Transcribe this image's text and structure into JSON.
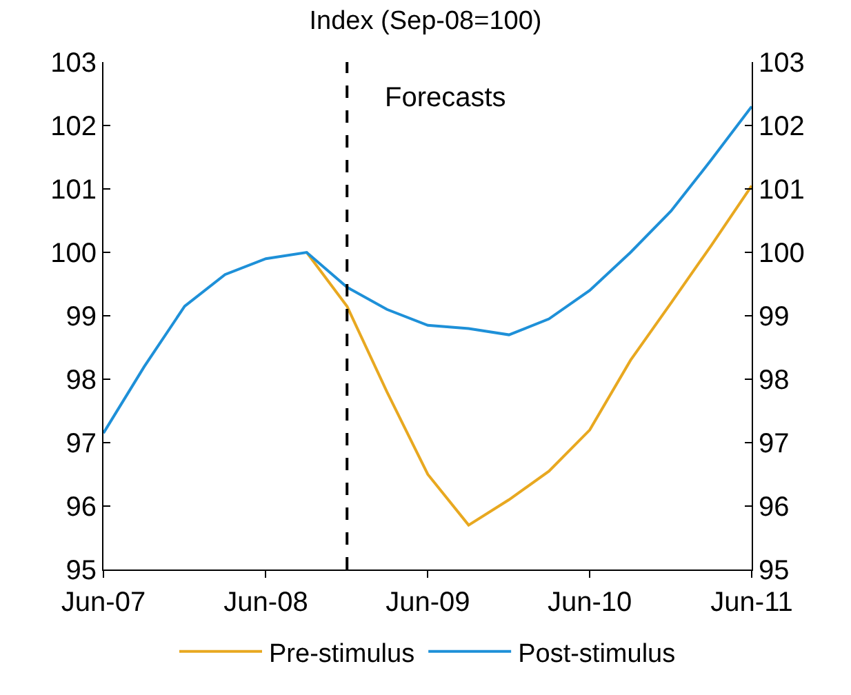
{
  "chart_data": {
    "type": "line",
    "title": "Index (Sep-08=100)",
    "annotations": [
      "Forecasts"
    ],
    "series": [
      {
        "name": "Pre-stimulus",
        "color": "#e8a820",
        "x": [
          "2008-09",
          "2008-12",
          "2009-03",
          "2009-06",
          "2009-09",
          "2009-12",
          "2010-03",
          "2010-06",
          "2010-09",
          "2010-12",
          "2011-03",
          "2011-06"
        ],
        "values": [
          100,
          99.15,
          97.8,
          96.5,
          95.7,
          96.1,
          96.55,
          97.2,
          98.3,
          99.2,
          100.1,
          101.05
        ]
      },
      {
        "name": "Post-stimulus",
        "color": "#1e90d8",
        "x": [
          "2007-06",
          "2007-09",
          "2007-12",
          "2008-03",
          "2008-06",
          "2008-09",
          "2008-12",
          "2009-03",
          "2009-06",
          "2009-09",
          "2009-12",
          "2010-03",
          "2010-06",
          "2010-09",
          "2010-12",
          "2011-03",
          "2011-06"
        ],
        "values": [
          97.15,
          98.2,
          99.15,
          99.65,
          99.9,
          100,
          99.45,
          99.1,
          98.85,
          98.8,
          98.7,
          98.95,
          99.4,
          100,
          100.65,
          101.45,
          102.3
        ]
      }
    ],
    "xlim": [
      "2007-06",
      "2011-06"
    ],
    "xticks": [
      {
        "value": "2007-06",
        "label": "Jun-07"
      },
      {
        "value": "2008-06",
        "label": "Jun-08"
      },
      {
        "value": "2009-06",
        "label": "Jun-09"
      },
      {
        "value": "2010-06",
        "label": "Jun-10"
      },
      {
        "value": "2011-06",
        "label": "Jun-11"
      }
    ],
    "ylim": [
      95,
      103
    ],
    "yticks": [
      95,
      96,
      97,
      98,
      99,
      100,
      101,
      102,
      103
    ],
    "y2lim": [
      95,
      103
    ],
    "y2ticks": [
      95,
      96,
      97,
      98,
      99,
      100,
      101,
      102,
      103
    ],
    "ref_lines": [
      {
        "axis": "x",
        "value": "2008-12",
        "color": "#000000",
        "line_style": "dashed"
      }
    ],
    "grid": false,
    "legend": "bottom",
    "marker": "none",
    "line_style": "solid"
  }
}
